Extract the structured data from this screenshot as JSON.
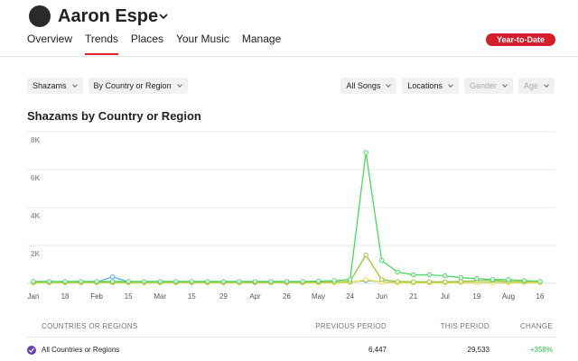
{
  "header": {
    "name": "Aaron Espe"
  },
  "tabs": {
    "items": [
      "Overview",
      "Trends",
      "Places",
      "Your Music",
      "Manage"
    ],
    "active": 1
  },
  "period": "Year-to-Date",
  "filters": {
    "left": [
      {
        "label": "Shazams"
      },
      {
        "label": "By Country or Region"
      }
    ],
    "right": [
      {
        "label": "All Songs"
      },
      {
        "label": "Locations"
      },
      {
        "label": "Gender",
        "disabled": true
      },
      {
        "label": "Age",
        "disabled": true
      }
    ]
  },
  "chart": {
    "type": "line",
    "title": "Shazams by Country or Region",
    "categories": [
      "Jan",
      null,
      "18",
      null,
      "Feb",
      null,
      "15",
      null,
      "Mar",
      null,
      "15",
      null,
      "29",
      null,
      "Apr",
      null,
      "26",
      null,
      "May",
      null,
      "24",
      null,
      "Jun",
      null,
      "21",
      null,
      "Jul",
      null,
      "19",
      null,
      "Aug",
      null,
      "16"
    ],
    "ylim": [
      0,
      8000
    ],
    "yticks": [
      {
        "value": 2000,
        "label": "2K"
      },
      {
        "value": 4000,
        "label": "4K"
      },
      {
        "value": 6000,
        "label": "6K"
      },
      {
        "value": 8000,
        "label": "8K"
      }
    ],
    "grid": true,
    "series": [
      {
        "color": "#5aaeea",
        "values": [
          60,
          60,
          50,
          50,
          60,
          350,
          80,
          60,
          50,
          50,
          50,
          50,
          50,
          50,
          50,
          50,
          50,
          50,
          60,
          60,
          60,
          150,
          80,
          60,
          50,
          50,
          50,
          50,
          50,
          50,
          50,
          50,
          50
        ]
      },
      {
        "color": "#f0e040",
        "values": [
          30,
          30,
          30,
          30,
          30,
          30,
          30,
          30,
          30,
          30,
          30,
          30,
          30,
          30,
          30,
          30,
          30,
          30,
          30,
          40,
          50,
          200,
          60,
          40,
          30,
          30,
          30,
          40,
          40,
          40,
          40,
          40,
          40
        ]
      },
      {
        "color": "#9ac43c",
        "values": [
          60,
          60,
          60,
          60,
          60,
          60,
          60,
          60,
          60,
          60,
          60,
          60,
          60,
          60,
          60,
          60,
          60,
          60,
          70,
          80,
          100,
          1500,
          200,
          100,
          80,
          80,
          80,
          100,
          150,
          150,
          100,
          100,
          100
        ]
      },
      {
        "color": "#4cd964",
        "values": [
          100,
          100,
          100,
          100,
          100,
          100,
          100,
          100,
          100,
          100,
          100,
          100,
          100,
          100,
          100,
          100,
          100,
          100,
          120,
          150,
          200,
          6900,
          1200,
          600,
          450,
          450,
          400,
          300,
          250,
          200,
          200,
          150,
          100
        ]
      }
    ]
  },
  "table": {
    "header": [
      "COUNTRIES OR REGIONS",
      "PREVIOUS PERIOD",
      "THIS PERIOD",
      "CHANGE"
    ],
    "rows": [
      [
        "All Countries or Regions",
        "6,447",
        "29,533",
        "+358%"
      ]
    ]
  }
}
